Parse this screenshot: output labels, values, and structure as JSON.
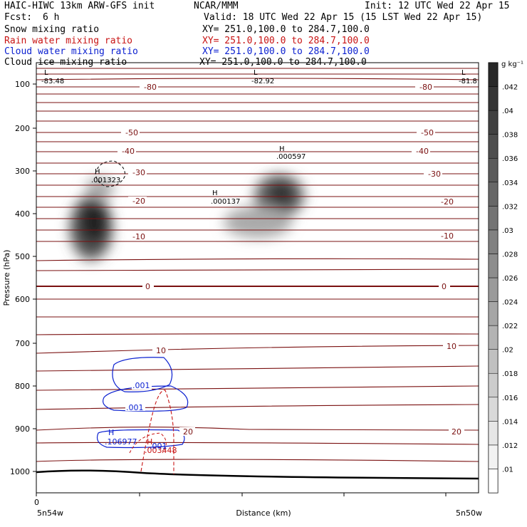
{
  "header": {
    "model": "HAIC-HIWC 13km ARW-GFS init",
    "org": "NCAR/MMM",
    "init": "Init: 12 UTC Wed 22 Apr 15",
    "fcst_label": "Fcst:",
    "fcst_value": "6 h",
    "valid": "Valid: 18 UTC Wed 22 Apr 15 (15 LST Wed 22 Apr 15)",
    "fields": [
      {
        "name": "Snow mixing ratio",
        "color": "#000000",
        "xy": "XY= 251.0,100.0 to 284.7,100.0"
      },
      {
        "name": "Rain water mixing ratio",
        "color": "#c81414",
        "xy": "XY= 251.0,100.0 to 284.7,100.0"
      },
      {
        "name": "Cloud water mixing ratio",
        "color": "#0a1fd0",
        "xy": "XY= 251.0,100.0 to 284.7,100.0"
      },
      {
        "name": "Cloud ice mixing ratio",
        "color": "#000000",
        "xy": "XY= 251.0,100.0 to 284.7,100.0"
      }
    ]
  },
  "chart_data": {
    "type": "heatmap",
    "xlabel": "Distance (km)",
    "ylabel": "Pressure (hPa)",
    "x_tick_first": "0",
    "x_left_label": "5n54w",
    "x_right_label": "5n50w",
    "y_ticks": [
      100,
      200,
      300,
      400,
      500,
      600,
      700,
      800,
      900,
      1000
    ],
    "y_range": [
      50,
      1050
    ],
    "colorbar": {
      "unit": "g kg⁻¹",
      "levels": [
        ".01",
        ".012",
        ".014",
        ".016",
        ".018",
        ".02",
        ".022",
        ".024",
        ".026",
        ".028",
        ".03",
        ".032",
        ".034",
        ".036",
        ".038",
        ".04",
        ".042"
      ]
    },
    "temperature_labels": [
      "-83.48",
      "-82.92",
      "-81.8",
      "-80",
      "-80",
      "-50",
      "-50",
      "-40",
      "-40",
      "-30",
      "-30",
      "-20",
      "-20",
      "-10",
      "-10",
      "0",
      "0",
      "10",
      "10",
      "20",
      "20"
    ],
    "extrema": [
      {
        "type": "L",
        "value": "-83.48"
      },
      {
        "type": "L",
        "value": "-82.92"
      },
      {
        "type": "L",
        "value": "-81.8"
      },
      {
        "type": "H",
        "value": ".001323"
      },
      {
        "type": "H",
        "value": ".000137"
      },
      {
        "type": "H",
        "value": ".000597"
      },
      {
        "type": "H",
        "value": ".106977"
      },
      {
        "type": "H",
        "value": ".003448"
      }
    ],
    "cloud_water_labels": [
      ".001",
      ".001",
      ".001"
    ]
  }
}
